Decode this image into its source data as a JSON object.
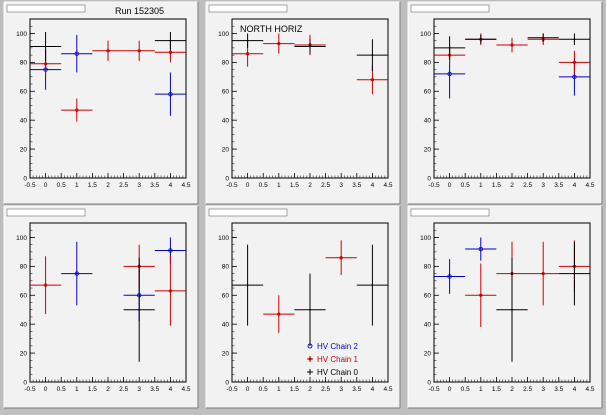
{
  "header": {
    "run_label": "Run 152305",
    "panel_caption": "NORTH HORIZ"
  },
  "legend": {
    "entries": [
      {
        "label": "HV Chain 2",
        "color": "#0000cc",
        "marker": "circle"
      },
      {
        "label": "HV Chain 1",
        "color": "#cc0000",
        "marker": "star"
      },
      {
        "label": "HV Chain 0",
        "color": "#000000",
        "marker": "cross"
      }
    ]
  },
  "axes": {
    "x_ticks": [
      "-0.5",
      "0",
      "0.5",
      "1",
      "1.5",
      "2",
      "2.5",
      "3",
      "3.5",
      "4",
      "4.5"
    ],
    "y_ticks": [
      "0",
      "20",
      "40",
      "60",
      "80",
      "100"
    ],
    "xlim": [
      -0.5,
      4.5
    ],
    "ylim": [
      0,
      110
    ]
  },
  "chart_data": [
    {
      "type": "scatter",
      "title": "",
      "series": [
        {
          "name": "HV Chain 2",
          "color": "#0000cc",
          "points": [
            {
              "x": 0,
              "y": 75,
              "xerr": 0.5,
              "yerr": 14
            },
            {
              "x": 1,
              "y": 86,
              "xerr": 0.5,
              "yerr": 13
            },
            {
              "x": 4,
              "y": 58,
              "xerr": 0.5,
              "yerr": 15
            }
          ]
        },
        {
          "name": "HV Chain 1",
          "color": "#cc0000",
          "points": [
            {
              "x": 0,
              "y": 79,
              "xerr": 0.5,
              "yerr": 9
            },
            {
              "x": 1,
              "y": 47,
              "xerr": 0.5,
              "yerr": 8
            },
            {
              "x": 2,
              "y": 88,
              "xerr": 0.5,
              "yerr": 7
            },
            {
              "x": 3,
              "y": 88,
              "xerr": 0.5,
              "yerr": 7
            },
            {
              "x": 4,
              "y": 87,
              "xerr": 0.5,
              "yerr": 7
            }
          ]
        },
        {
          "name": "HV Chain 0",
          "color": "#000000",
          "points": [
            {
              "x": 0,
              "y": 91,
              "xerr": 0.5,
              "yerr": 10
            },
            {
              "x": 4,
              "y": 95,
              "xerr": 0.5,
              "yerr": 6
            }
          ]
        }
      ]
    },
    {
      "type": "scatter",
      "title": "NORTH HORIZ",
      "series": [
        {
          "name": "HV Chain 1",
          "color": "#cc0000",
          "points": [
            {
              "x": 0,
              "y": 86,
              "xerr": 0.5,
              "yerr": 9
            },
            {
              "x": 1,
              "y": 93,
              "xerr": 0.5,
              "yerr": 7
            },
            {
              "x": 2,
              "y": 92,
              "xerr": 0.5,
              "yerr": 7
            },
            {
              "x": 4,
              "y": 68,
              "xerr": 0.5,
              "yerr": 10
            }
          ]
        },
        {
          "name": "HV Chain 0",
          "color": "#000000",
          "points": [
            {
              "x": 0,
              "y": 95,
              "xerr": 0.5,
              "yerr": 5
            },
            {
              "x": 2,
              "y": 91,
              "xerr": 0.5,
              "yerr": 5
            },
            {
              "x": 4,
              "y": 85,
              "xerr": 0.5,
              "yerr": 11
            }
          ]
        }
      ]
    },
    {
      "type": "scatter",
      "title": "",
      "series": [
        {
          "name": "HV Chain 2",
          "color": "#0000cc",
          "points": [
            {
              "x": 0,
              "y": 72,
              "xerr": 0.5,
              "yerr": 17
            },
            {
              "x": 4,
              "y": 70,
              "xerr": 0.5,
              "yerr": 13
            }
          ]
        },
        {
          "name": "HV Chain 1",
          "color": "#cc0000",
          "points": [
            {
              "x": 0,
              "y": 85,
              "xerr": 0.5,
              "yerr": 7
            },
            {
              "x": 1,
              "y": 96,
              "xerr": 0.5,
              "yerr": 4
            },
            {
              "x": 2,
              "y": 92,
              "xerr": 0.5,
              "yerr": 5
            },
            {
              "x": 3,
              "y": 96,
              "xerr": 0.5,
              "yerr": 4
            },
            {
              "x": 4,
              "y": 80,
              "xerr": 0.5,
              "yerr": 8
            }
          ]
        },
        {
          "name": "HV Chain 0",
          "color": "#000000",
          "points": [
            {
              "x": 0,
              "y": 90,
              "xerr": 0.5,
              "yerr": 8
            },
            {
              "x": 1,
              "y": 96,
              "xerr": 0.5,
              "yerr": 3
            },
            {
              "x": 3,
              "y": 97,
              "xerr": 0.5,
              "yerr": 3
            },
            {
              "x": 4,
              "y": 96,
              "xerr": 0.5,
              "yerr": 4
            }
          ]
        }
      ]
    },
    {
      "type": "scatter",
      "title": "",
      "series": [
        {
          "name": "HV Chain 2",
          "color": "#0000cc",
          "points": [
            {
              "x": 1,
              "y": 75,
              "xerr": 0.5,
              "yerr": 22
            },
            {
              "x": 3,
              "y": 60,
              "xerr": 0.5,
              "yerr": 18
            },
            {
              "x": 4,
              "y": 91,
              "xerr": 0.5,
              "yerr": 9
            }
          ]
        },
        {
          "name": "HV Chain 1",
          "color": "#cc0000",
          "points": [
            {
              "x": 0,
              "y": 67,
              "xerr": 0.5,
              "yerr": 20
            },
            {
              "x": 3,
              "y": 80,
              "xerr": 0.5,
              "yerr": 15
            },
            {
              "x": 4,
              "y": 63,
              "xerr": 0.5,
              "yerr": 24
            }
          ]
        },
        {
          "name": "HV Chain 0",
          "color": "#000000",
          "points": [
            {
              "x": 3,
              "y": 50,
              "xerr": 0.5,
              "yerr": 36
            }
          ]
        }
      ]
    },
    {
      "type": "scatter",
      "title": "",
      "series": [
        {
          "name": "HV Chain 1",
          "color": "#cc0000",
          "points": [
            {
              "x": 1,
              "y": 47,
              "xerr": 0.5,
              "yerr": 13
            },
            {
              "x": 3,
              "y": 86,
              "xerr": 0.5,
              "yerr": 12
            }
          ]
        },
        {
          "name": "HV Chain 0",
          "color": "#000000",
          "points": [
            {
              "x": 0,
              "y": 67,
              "xerr": 0.5,
              "yerr": 28
            },
            {
              "x": 2,
              "y": 50,
              "xerr": 0.5,
              "yerr": 25
            },
            {
              "x": 4,
              "y": 67,
              "xerr": 0.5,
              "yerr": 28
            }
          ]
        }
      ]
    },
    {
      "type": "scatter",
      "title": "",
      "series": [
        {
          "name": "HV Chain 2",
          "color": "#0000cc",
          "points": [
            {
              "x": 0,
              "y": 73,
              "xerr": 0.5,
              "yerr": 12
            },
            {
              "x": 1,
              "y": 92,
              "xerr": 0.5,
              "yerr": 8
            }
          ]
        },
        {
          "name": "HV Chain 1",
          "color": "#cc0000",
          "points": [
            {
              "x": 1,
              "y": 60,
              "xerr": 0.5,
              "yerr": 22
            },
            {
              "x": 2,
              "y": 75,
              "xerr": 0.5,
              "yerr": 22
            },
            {
              "x": 3,
              "y": 75,
              "xerr": 0.5,
              "yerr": 22
            },
            {
              "x": 4,
              "y": 80,
              "xerr": 0.5,
              "yerr": 18
            }
          ]
        },
        {
          "name": "HV Chain 0",
          "color": "#000000",
          "points": [
            {
              "x": 2,
              "y": 50,
              "xerr": 0.5,
              "yerr": 36
            },
            {
              "x": 4,
              "y": 75,
              "xerr": 0.5,
              "yerr": 22
            }
          ]
        }
      ]
    }
  ]
}
